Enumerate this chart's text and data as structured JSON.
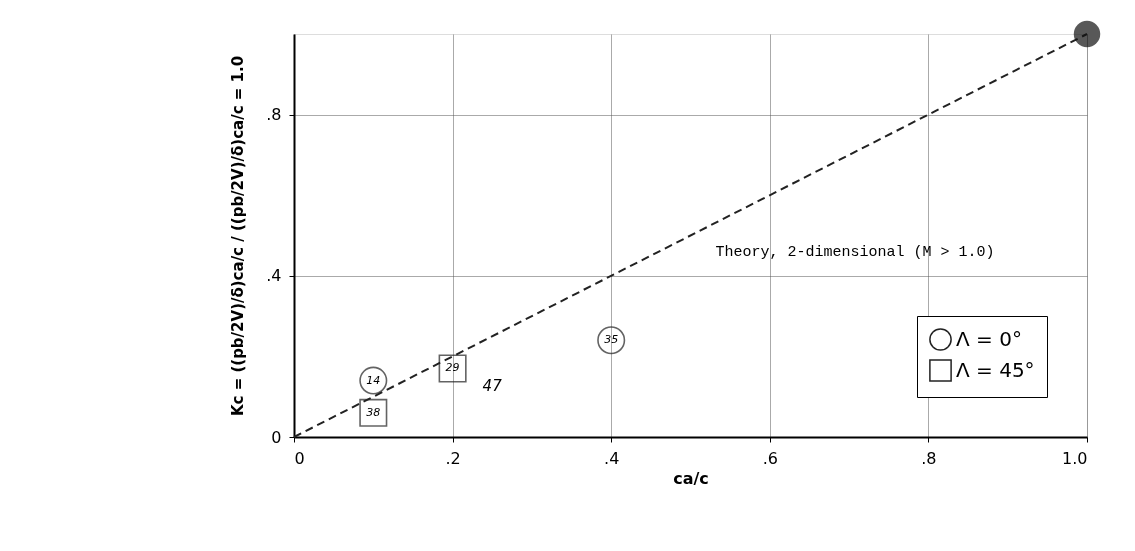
{
  "chart_data": {
    "type": "scatter",
    "xlabel": "ca/c",
    "ylabel": "Kc = ((pb/2V)/δ)ca/c / ((pb/2V)/δ)ca/c = 1.0",
    "xlim": [
      0,
      1.0
    ],
    "ylim": [
      0,
      1.0
    ],
    "xticks": [
      0,
      {
        "value": 0.2,
        "label": ".2"
      },
      {
        "value": 0.4,
        "label": ".4"
      },
      {
        "value": 0.6,
        "label": ".6"
      },
      {
        "value": 0.8,
        "label": ".8"
      },
      {
        "value": 1.0,
        "label": "1.0"
      }
    ],
    "yticks": [
      0,
      {
        "value": 0.4,
        "label": ".4"
      },
      {
        "value": 0.8,
        "label": ".8"
      }
    ],
    "grid": true,
    "legend": "bottom right",
    "series": [
      {
        "name": "Theory, 2-dimensional (M > 1.0)",
        "type": "line",
        "line_style": "dashed",
        "marker": "none",
        "color": "#222222",
        "x": [
          0,
          1.0
        ],
        "values": [
          0,
          1.0
        ]
      },
      {
        "name": "Λ = 0°",
        "type": "scatter",
        "marker": "circle",
        "color": "#222222",
        "x": [
          0.1,
          0.4
        ],
        "values": [
          0.14,
          0.24
        ]
      },
      {
        "name": "Λ = 45°",
        "type": "scatter",
        "marker": "square",
        "color": "#222222",
        "x": [
          0.1,
          0.2
        ],
        "values": [
          0.06,
          0.17
        ]
      },
      {
        "type": "scatter",
        "marker": "circle",
        "color": "#111111",
        "x": [
          1.0
        ],
        "values": [
          1.0
        ]
      }
    ],
    "annotations": [
      {
        "text": "14",
        "x": 0.1,
        "y": 0.14
      },
      {
        "text": "38",
        "x": 0.1,
        "y": 0.06
      },
      {
        "text": "29",
        "x": 0.2,
        "y": 0.17
      },
      {
        "text": "47",
        "x": 0.2,
        "y": 0.17
      },
      {
        "text": "35",
        "x": 0.4,
        "y": 0.24
      }
    ]
  }
}
